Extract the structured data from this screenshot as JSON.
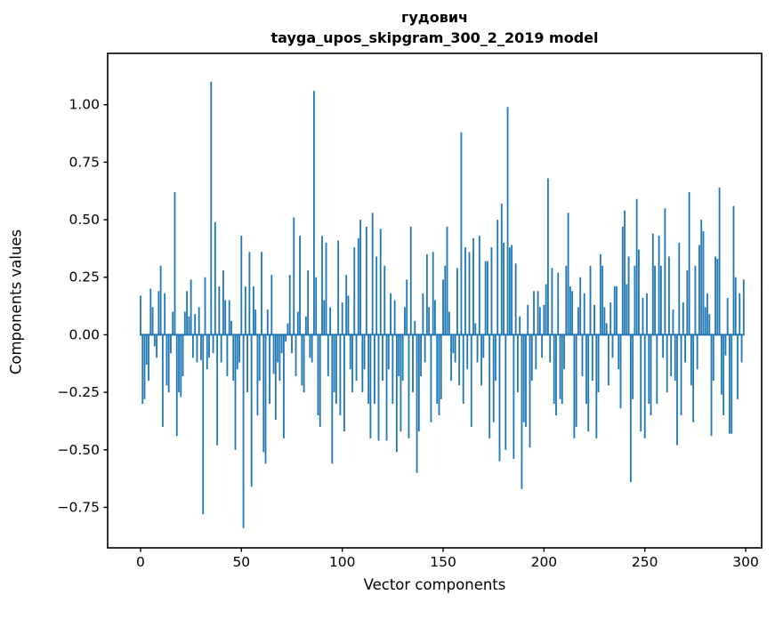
{
  "figure": {
    "title_line1": "гудович",
    "title_line2": "tayga_upos_skipgram_300_2_2019 model",
    "xlabel": "Vector components",
    "ylabel": "Components values",
    "background": "#ffffff"
  },
  "chart_data": {
    "type": "bar",
    "title": "гудович\ntayga_upos_skipgram_300_2_2019 model",
    "xlabel": "Vector components",
    "ylabel": "Components values",
    "bar_color": "#1f77b4",
    "axis_color": "#000000",
    "grid": false,
    "legend": null,
    "n_components": 300,
    "x_ticks": [
      0,
      50,
      100,
      150,
      200,
      250,
      300
    ],
    "y_ticks": [
      1.0,
      0.75,
      0.5,
      0.25,
      0.0,
      -0.25,
      -0.5,
      -0.75
    ],
    "xlim": [
      -16.3,
      307.9
    ],
    "ylim": [
      -0.926,
      1.223
    ],
    "values": [
      0.17,
      -0.3,
      -0.28,
      -0.13,
      -0.2,
      0.2,
      0.12,
      -0.05,
      -0.1,
      0.19,
      0.3,
      -0.4,
      0.18,
      -0.22,
      -0.25,
      -0.08,
      0.1,
      0.62,
      -0.44,
      -0.25,
      -0.27,
      -0.18,
      0.1,
      0.19,
      0.08,
      0.24,
      -0.1,
      0.09,
      -0.12,
      0.12,
      -0.11,
      -0.78,
      0.25,
      -0.15,
      -0.1,
      1.1,
      -0.08,
      0.49,
      -0.48,
      0.21,
      -0.12,
      0.28,
      0.15,
      -0.18,
      0.15,
      0.06,
      -0.2,
      -0.5,
      -0.15,
      -0.12,
      0.43,
      -0.84,
      0.21,
      -0.25,
      0.36,
      -0.66,
      0.21,
      0.11,
      -0.35,
      -0.2,
      0.36,
      -0.51,
      -0.56,
      0.11,
      -0.3,
      0.26,
      -0.17,
      -0.37,
      -0.12,
      -0.2,
      -0.08,
      -0.45,
      -0.03,
      0.05,
      0.26,
      -0.08,
      0.51,
      -0.18,
      0.1,
      0.43,
      -0.22,
      -0.25,
      0.08,
      0.28,
      -0.1,
      -0.12,
      1.06,
      0.25,
      -0.35,
      -0.4,
      0.43,
      0.15,
      0.4,
      -0.18,
      0.12,
      -0.56,
      -0.25,
      -0.3,
      0.41,
      -0.35,
      0.14,
      -0.42,
      0.26,
      0.17,
      -0.15,
      -0.25,
      0.38,
      -0.2,
      0.42,
      0.5,
      -0.25,
      -0.15,
      0.47,
      -0.3,
      -0.45,
      0.53,
      -0.3,
      0.34,
      -0.46,
      0.46,
      -0.2,
      0.3,
      -0.46,
      -0.15,
      0.18,
      -0.3,
      0.15,
      -0.51,
      -0.18,
      -0.42,
      -0.2,
      0.12,
      0.24,
      -0.45,
      0.47,
      -0.25,
      0.06,
      -0.6,
      -0.42,
      -0.18,
      0.18,
      -0.12,
      0.35,
      0.12,
      -0.38,
      0.36,
      0.15,
      -0.3,
      -0.35,
      -0.28,
      0.24,
      0.3,
      0.47,
      0.1,
      -0.2,
      -0.08,
      -0.12,
      0.29,
      -0.22,
      0.88,
      -0.3,
      0.38,
      -0.15,
      0.36,
      -0.4,
      0.42,
      0.05,
      -0.12,
      0.43,
      -0.22,
      -0.1,
      0.32,
      0.32,
      -0.45,
      0.38,
      -0.38,
      -0.2,
      0.5,
      -0.55,
      0.57,
      0.4,
      -0.5,
      0.99,
      0.38,
      0.39,
      -0.54,
      0.31,
      -0.25,
      0.08,
      -0.67,
      -0.38,
      -0.4,
      0.13,
      -0.49,
      -0.2,
      0.19,
      -0.15,
      0.19,
      0.12,
      -0.1,
      0.13,
      0.22,
      0.68,
      -0.12,
      0.29,
      -0.3,
      -0.35,
      0.27,
      -0.28,
      -0.3,
      -0.15,
      0.3,
      0.53,
      0.21,
      0.19,
      -0.45,
      -0.4,
      0.12,
      0.25,
      -0.18,
      0.18,
      -0.3,
      -0.42,
      0.3,
      -0.2,
      0.13,
      -0.45,
      -0.25,
      0.35,
      0.3,
      0.12,
      0.05,
      -0.22,
      0.14,
      -0.1,
      0.21,
      0.21,
      -0.15,
      -0.32,
      0.47,
      0.54,
      0.22,
      0.34,
      -0.64,
      -0.28,
      0.3,
      0.59,
      0.37,
      -0.42,
      0.16,
      -0.45,
      0.18,
      -0.3,
      -0.35,
      0.44,
      0.3,
      -0.3,
      0.43,
      0.3,
      -0.1,
      0.55,
      -0.25,
      0.34,
      -0.18,
      0.11,
      -0.2,
      -0.48,
      0.4,
      -0.35,
      0.14,
      -0.12,
      0.28,
      0.62,
      -0.22,
      -0.38,
      0.3,
      -0.15,
      0.39,
      0.5,
      0.45,
      0.12,
      0.18,
      0.09,
      -0.44,
      -0.2,
      0.34,
      0.33,
      0.64,
      -0.26,
      -0.35,
      -0.09,
      0.16,
      -0.43,
      -0.43,
      0.56,
      0.25,
      -0.28,
      0.18,
      -0.12,
      0.24
    ]
  }
}
